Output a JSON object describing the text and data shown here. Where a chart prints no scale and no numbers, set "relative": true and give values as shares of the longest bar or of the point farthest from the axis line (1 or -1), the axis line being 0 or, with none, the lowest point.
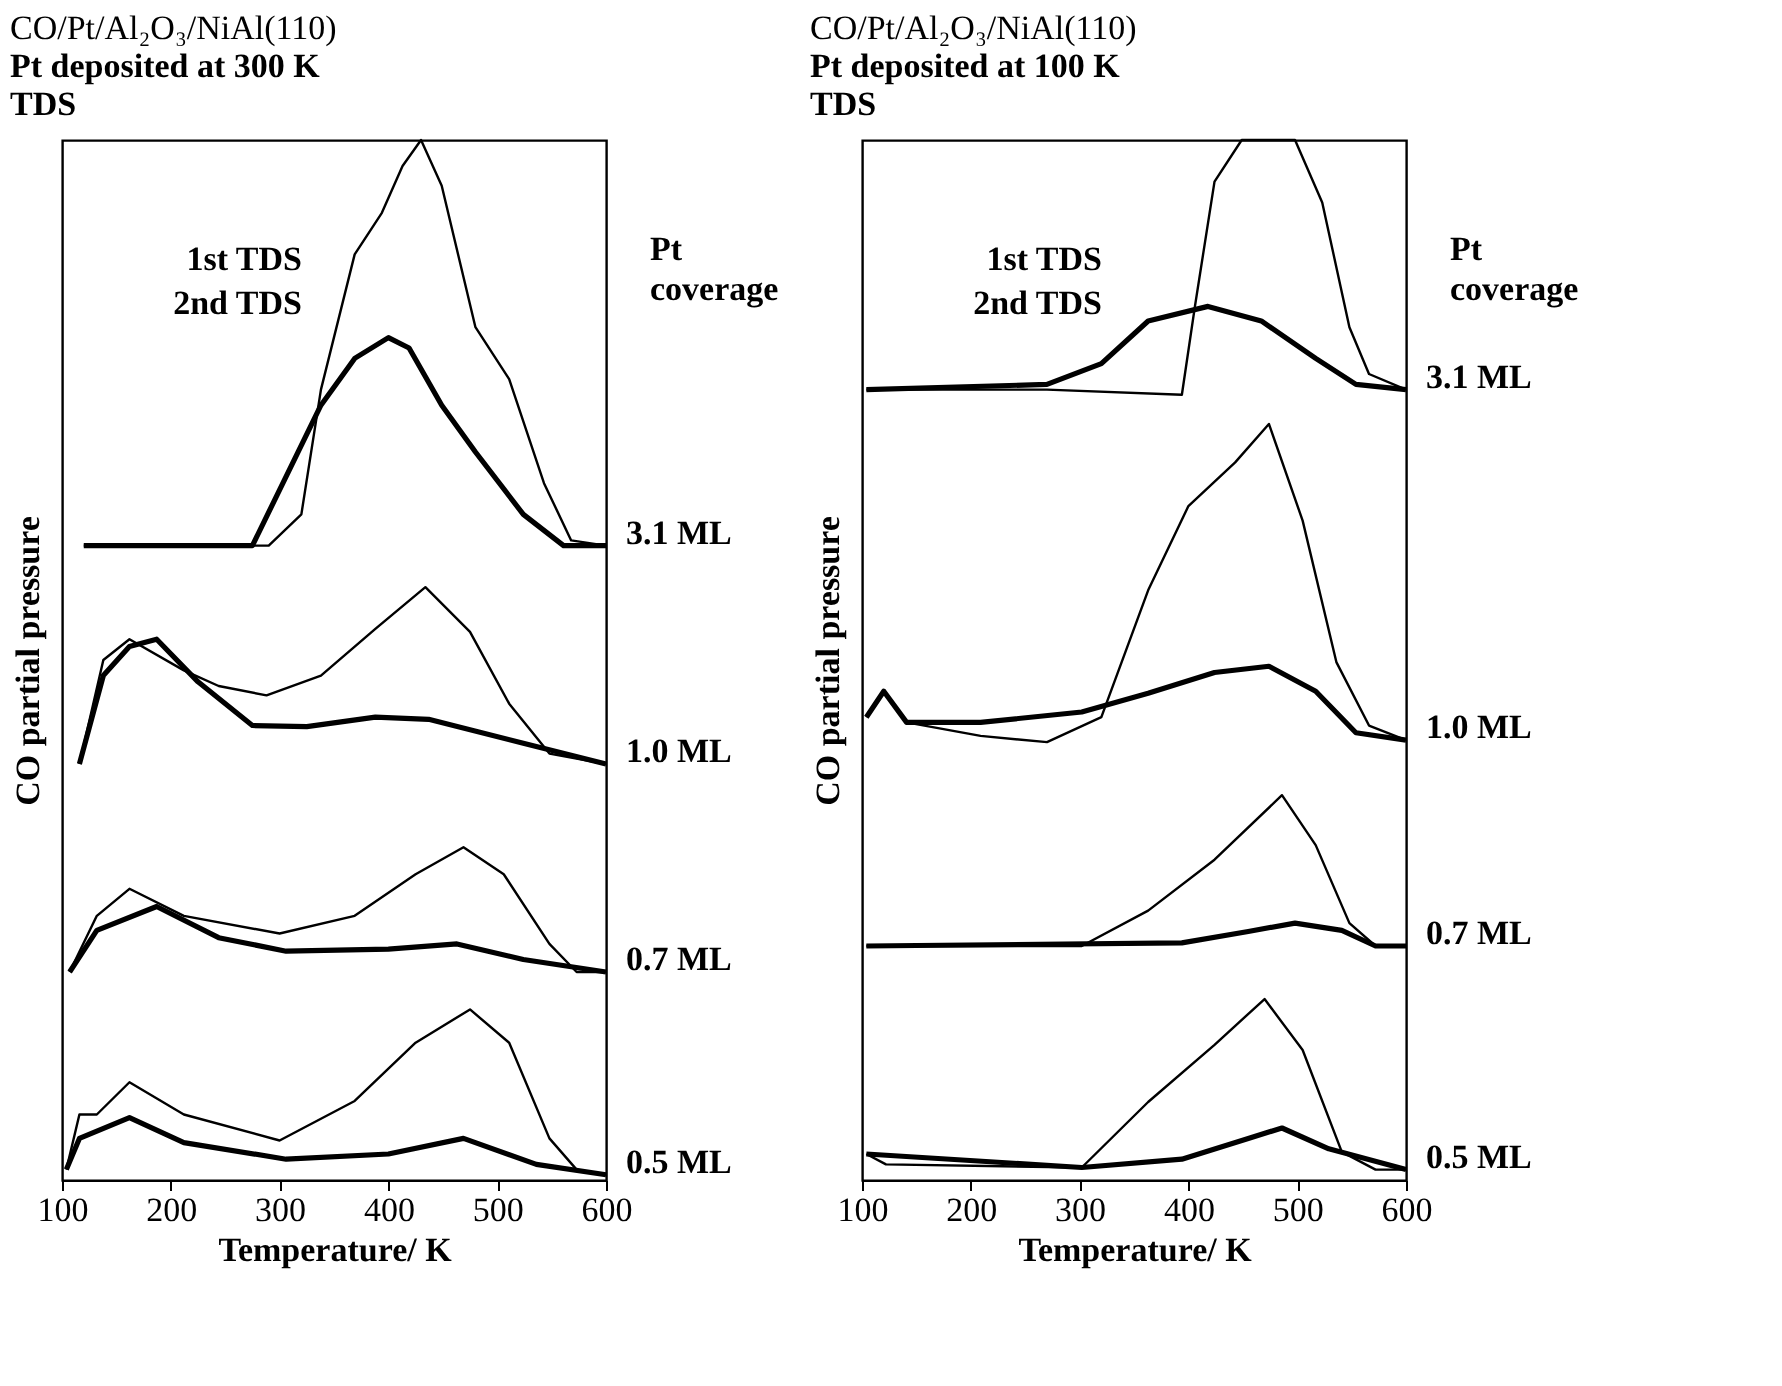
{
  "chart_data": [
    {
      "type": "line",
      "title": "CO/Pt/Al₂O₃/NiAl(110)",
      "subtitle": "Pt deposited at 300 K\nTDS",
      "xlabel": "Temperature/ K",
      "ylabel": "CO partial pressure",
      "relative": true,
      "xlim": [
        100,
        600
      ],
      "xticks": [
        100,
        200,
        300,
        400,
        500,
        600
      ],
      "annotations": [
        "Pt coverage",
        "1st TDS",
        "2nd TDS",
        "3.1 ML",
        "1.0 ML",
        "0.7 ML",
        "0.5 ML"
      ],
      "series": [
        {
          "color": "#000000",
          "x": [
            120,
            200,
            290,
            320,
            338,
            369,
            394,
            413,
            430,
            449,
            480,
            511,
            543,
            568,
            600
          ],
          "values": [
            0.61,
            0.61,
            0.61,
            0.64,
            0.76,
            0.89,
            0.93,
            0.975,
            1.0,
            0.956,
            0.82,
            0.77,
            0.67,
            0.615,
            0.61
          ]
        },
        {
          "color": "#000000",
          "x": [
            120,
            200,
            275,
            338,
            369,
            400,
            419,
            449,
            480,
            524,
            561,
            600
          ],
          "values": [
            0.61,
            0.61,
            0.61,
            0.745,
            0.79,
            0.81,
            0.8,
            0.745,
            0.7,
            0.64,
            0.61,
            0.61
          ]
        },
        {
          "color": "#000000",
          "x": [
            116,
            138,
            162,
            212,
            244,
            288,
            338,
            388,
            434,
            475,
            511,
            548,
            600
          ],
          "values": [
            0.4,
            0.5,
            0.52,
            0.49,
            0.475,
            0.466,
            0.485,
            0.53,
            0.57,
            0.527,
            0.458,
            0.41,
            0.4
          ]
        },
        {
          "color": "#000000",
          "x": [
            116,
            138,
            162,
            187,
            225,
            275,
            325,
            388,
            437,
            524,
            600
          ],
          "values": [
            0.4,
            0.485,
            0.513,
            0.52,
            0.479,
            0.437,
            0.436,
            0.445,
            0.443,
            0.42,
            0.4
          ]
        },
        {
          "color": "#000000",
          "x": [
            107,
            132,
            162,
            212,
            300,
            369,
            425,
            469,
            506,
            548,
            573,
            600
          ],
          "values": [
            0.2,
            0.254,
            0.28,
            0.254,
            0.237,
            0.254,
            0.294,
            0.32,
            0.294,
            0.227,
            0.2,
            0.2
          ]
        },
        {
          "color": "#000000",
          "x": [
            107,
            132,
            187,
            244,
            306,
            400,
            463,
            524,
            600
          ],
          "values": [
            0.2,
            0.24,
            0.263,
            0.233,
            0.22,
            0.222,
            0.227,
            0.212,
            0.2
          ]
        },
        {
          "color": "#000000",
          "x": [
            104,
            116,
            132,
            162,
            212,
            300,
            369,
            425,
            475,
            511,
            548,
            573,
            600
          ],
          "values": [
            0.01,
            0.063,
            0.063,
            0.094,
            0.063,
            0.038,
            0.076,
            0.132,
            0.164,
            0.132,
            0.04,
            0.01,
            0.005
          ]
        },
        {
          "color": "#000000",
          "x": [
            104,
            116,
            162,
            212,
            306,
            400,
            469,
            536,
            600
          ],
          "values": [
            0.01,
            0.04,
            0.06,
            0.036,
            0.02,
            0.025,
            0.04,
            0.015,
            0.005
          ]
        }
      ]
    },
    {
      "type": "line",
      "title": "CO/Pt/Al₂O₃/NiAl(110)",
      "subtitle": "Pt deposited at 100 K\nTDS",
      "xlabel": "Temperature/ K",
      "ylabel": "CO partial pressure",
      "relative": true,
      "xlim": [
        100,
        600
      ],
      "xticks": [
        100,
        200,
        300,
        400,
        500,
        600
      ],
      "annotations": [
        "Pt coverage",
        "1st TDS",
        "2nd TDS",
        "3.1 ML",
        "1.0 ML",
        "0.7 ML",
        "0.5 ML"
      ],
      "series": [
        {
          "color": "#000000",
          "x": [
            104,
            270,
            394,
            406,
            424,
            449,
            498,
            523,
            548,
            566,
            600
          ],
          "values": [
            0.76,
            0.76,
            0.755,
            0.84,
            0.96,
            1.0,
            1.0,
            0.94,
            0.82,
            0.775,
            0.76
          ]
        },
        {
          "color": "#000000",
          "x": [
            104,
            270,
            320,
            363,
            418,
            467,
            517,
            554,
            600
          ],
          "values": [
            0.76,
            0.765,
            0.785,
            0.826,
            0.84,
            0.826,
            0.79,
            0.765,
            0.76
          ]
        },
        {
          "color": "#000000",
          "x": [
            104,
            120,
            141,
            209,
            270,
            320,
            363,
            400,
            443,
            474,
            505,
            536,
            566,
            600
          ],
          "values": [
            0.445,
            0.47,
            0.44,
            0.427,
            0.421,
            0.445,
            0.567,
            0.648,
            0.69,
            0.727,
            0.634,
            0.498,
            0.437,
            0.423
          ]
        },
        {
          "color": "#000000",
          "x": [
            104,
            120,
            141,
            209,
            302,
            363,
            424,
            474,
            517,
            554,
            600
          ],
          "values": [
            0.445,
            0.47,
            0.44,
            0.44,
            0.45,
            0.468,
            0.488,
            0.494,
            0.47,
            0.43,
            0.423
          ]
        },
        {
          "color": "#000000",
          "x": [
            104,
            302,
            363,
            424,
            486,
            517,
            548,
            572,
            600
          ],
          "values": [
            0.225,
            0.225,
            0.259,
            0.308,
            0.37,
            0.322,
            0.247,
            0.225,
            0.225
          ]
        },
        {
          "color": "#000000",
          "x": [
            104,
            394,
            455,
            498,
            541,
            572,
            600
          ],
          "values": [
            0.225,
            0.228,
            0.239,
            0.247,
            0.24,
            0.225,
            0.225
          ]
        },
        {
          "color": "#000000",
          "x": [
            104,
            122,
            302,
            363,
            424,
            470,
            505,
            541,
            572,
            600
          ],
          "values": [
            0.025,
            0.015,
            0.012,
            0.075,
            0.13,
            0.174,
            0.125,
            0.027,
            0.01,
            0.01
          ]
        },
        {
          "color": "#000000",
          "x": [
            104,
            302,
            394,
            455,
            486,
            529,
            600
          ],
          "values": [
            0.025,
            0.012,
            0.02,
            0.04,
            0.05,
            0.03,
            0.01
          ]
        }
      ]
    }
  ]
}
